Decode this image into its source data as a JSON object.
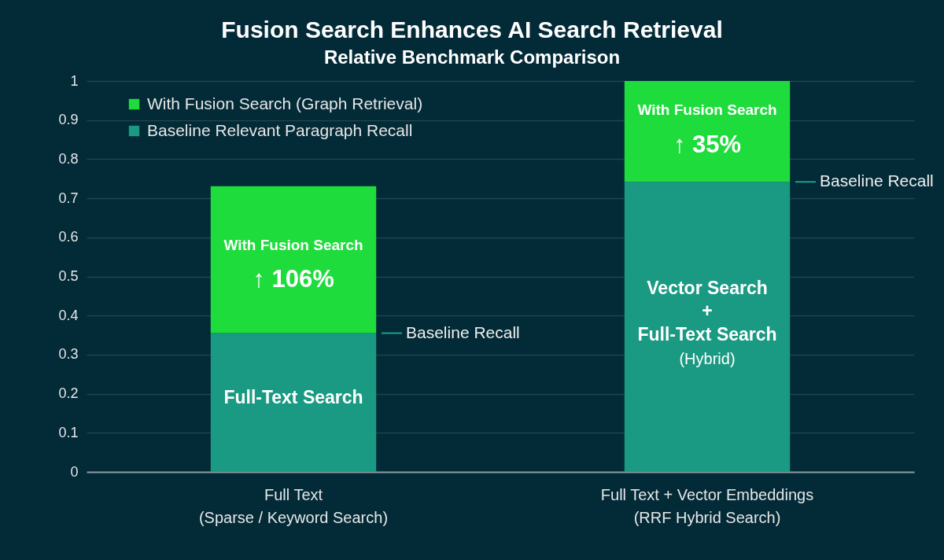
{
  "chart_data": {
    "type": "bar",
    "title": "Fusion Search Enhances AI Search Retrieval",
    "subtitle": "Relative Benchmark Comparison",
    "categories": [
      "Full Text\n(Sparse / Keyword Search)",
      "Full Text + Vector Embeddings\n(RRF Hybrid Search)"
    ],
    "series": [
      {
        "name": "Baseline Relevant Paragraph Recall",
        "color": "#1a9a82",
        "values": [
          0.355,
          0.742
        ]
      },
      {
        "name": "With Fusion Search (Graph Retrieval)",
        "color": "#1edc3c",
        "values": [
          0.376,
          0.258
        ]
      }
    ],
    "stacked": true,
    "ylim": [
      0,
      1
    ],
    "yticks": [
      0,
      0.1,
      0.2,
      0.3,
      0.4,
      0.5,
      0.6,
      0.7,
      0.8,
      0.9,
      1
    ],
    "grid": "y",
    "legend": "top left",
    "annotations": [
      "With Fusion Search",
      "↑ 106%",
      "Full-Text Search",
      "Baseline Recall",
      "With Fusion Search",
      "↑ 35%",
      "Vector Search\n+\nFull-Text Search",
      "(Hybrid)",
      "Baseline Recall"
    ]
  }
}
